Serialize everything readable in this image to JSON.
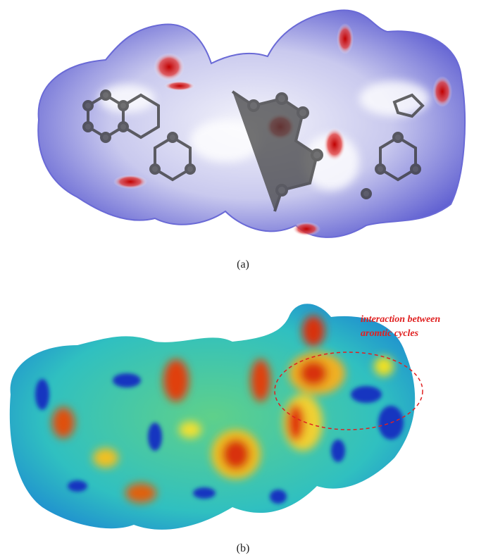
{
  "panels": [
    {
      "label": "(a)"
    },
    {
      "label": "(b)",
      "annotation": [
        "interaction between",
        "aromtic cycles"
      ]
    }
  ]
}
